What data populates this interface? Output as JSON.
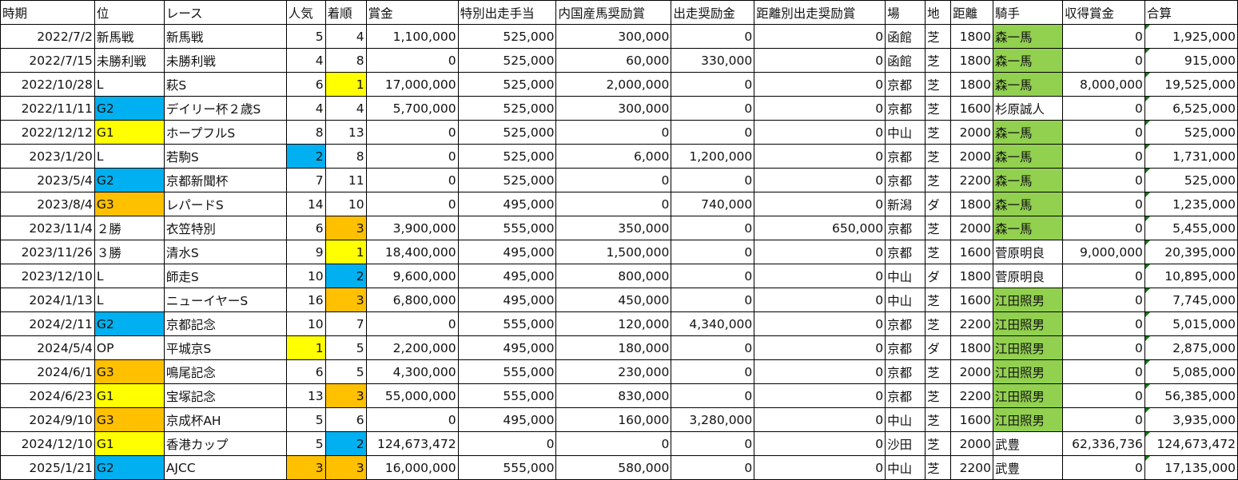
{
  "colors": {
    "yellow": "#FFFF00",
    "blue": "#00B0F0",
    "orange": "#FFC000",
    "green": "#92D050"
  },
  "headers": [
    "時期",
    "位",
    "レース",
    "人気",
    "着順",
    "賞金",
    "特別出走手当",
    "内国産馬奨励賞",
    "出走奨励金",
    "距離別出走奨励賞",
    "場",
    "地",
    "距離",
    "騎手",
    "収得賞金",
    "合算"
  ],
  "rows": [
    {
      "cells": [
        "2022/7/2",
        "新馬戦",
        "新馬戦",
        "5",
        "4",
        "1,100,000",
        "525,000",
        "300,000",
        "0",
        "0",
        "函館",
        "芝",
        "1800",
        "森一馬",
        "0",
        "1,925,000"
      ],
      "fills": {
        "13": "green"
      }
    },
    {
      "cells": [
        "2022/7/15",
        "未勝利戦",
        "未勝利戦",
        "4",
        "8",
        "0",
        "525,000",
        "60,000",
        "330,000",
        "0",
        "函館",
        "芝",
        "1800",
        "森一馬",
        "0",
        "915,000"
      ],
      "fills": {
        "13": "green"
      }
    },
    {
      "cells": [
        "2022/10/28",
        "L",
        "萩S",
        "6",
        "1",
        "17,000,000",
        "525,000",
        "2,000,000",
        "0",
        "0",
        "京都",
        "芝",
        "1800",
        "森一馬",
        "8,000,000",
        "19,525,000"
      ],
      "fills": {
        "4": "yellow",
        "13": "green"
      }
    },
    {
      "cells": [
        "2022/11/11",
        "G2",
        "デイリー杯２歳S",
        "4",
        "4",
        "5,700,000",
        "525,000",
        "300,000",
        "0",
        "0",
        "京都",
        "芝",
        "1600",
        "杉原誠人",
        "0",
        "6,525,000"
      ],
      "fills": {
        "1": "blue"
      }
    },
    {
      "cells": [
        "2022/12/12",
        "G1",
        "ホープフルS",
        "8",
        "13",
        "0",
        "525,000",
        "0",
        "0",
        "0",
        "中山",
        "芝",
        "2000",
        "森一馬",
        "0",
        "525,000"
      ],
      "fills": {
        "1": "yellow",
        "13": "green"
      }
    },
    {
      "cells": [
        "2023/1/20",
        "L",
        "若駒S",
        "2",
        "8",
        "0",
        "525,000",
        "6,000",
        "1,200,000",
        "0",
        "京都",
        "芝",
        "2000",
        "森一馬",
        "0",
        "1,731,000"
      ],
      "fills": {
        "3": "blue",
        "13": "green"
      }
    },
    {
      "cells": [
        "2023/5/4",
        "G2",
        "京都新聞杯",
        "7",
        "11",
        "0",
        "525,000",
        "0",
        "0",
        "0",
        "京都",
        "芝",
        "2200",
        "森一馬",
        "0",
        "525,000"
      ],
      "fills": {
        "1": "blue",
        "13": "green"
      }
    },
    {
      "cells": [
        "2023/8/4",
        "G3",
        "レパードS",
        "14",
        "10",
        "0",
        "495,000",
        "0",
        "740,000",
        "0",
        "新潟",
        "ダ",
        "1800",
        "森一馬",
        "0",
        "1,235,000"
      ],
      "fills": {
        "1": "orange",
        "13": "green"
      }
    },
    {
      "cells": [
        "2023/11/4",
        "２勝",
        "衣笠特別",
        "6",
        "3",
        "3,900,000",
        "555,000",
        "350,000",
        "0",
        "650,000",
        "京都",
        "芝",
        "2000",
        "森一馬",
        "0",
        "5,455,000"
      ],
      "fills": {
        "4": "orange",
        "13": "green"
      }
    },
    {
      "cells": [
        "2023/11/26",
        "３勝",
        "清水S",
        "9",
        "1",
        "18,400,000",
        "495,000",
        "1,500,000",
        "0",
        "0",
        "京都",
        "芝",
        "1600",
        "菅原明良",
        "9,000,000",
        "20,395,000"
      ],
      "fills": {
        "4": "yellow"
      }
    },
    {
      "cells": [
        "2023/12/10",
        "L",
        "師走S",
        "10",
        "2",
        "9,600,000",
        "495,000",
        "800,000",
        "0",
        "0",
        "中山",
        "ダ",
        "1800",
        "菅原明良",
        "0",
        "10,895,000"
      ],
      "fills": {
        "4": "blue"
      }
    },
    {
      "cells": [
        "2024/1/13",
        "L",
        "ニューイヤーS",
        "16",
        "3",
        "6,800,000",
        "495,000",
        "450,000",
        "0",
        "0",
        "中山",
        "芝",
        "1600",
        "江田照男",
        "0",
        "7,745,000"
      ],
      "fills": {
        "4": "orange",
        "13": "green"
      }
    },
    {
      "cells": [
        "2024/2/11",
        "G2",
        "京都記念",
        "10",
        "7",
        "0",
        "555,000",
        "120,000",
        "4,340,000",
        "0",
        "京都",
        "芝",
        "2200",
        "江田照男",
        "0",
        "5,015,000"
      ],
      "fills": {
        "1": "blue",
        "13": "green"
      }
    },
    {
      "cells": [
        "2024/5/4",
        "OP",
        "平城京S",
        "1",
        "5",
        "2,200,000",
        "495,000",
        "180,000",
        "0",
        "0",
        "京都",
        "ダ",
        "1800",
        "江田照男",
        "0",
        "2,875,000"
      ],
      "fills": {
        "3": "yellow",
        "13": "green"
      }
    },
    {
      "cells": [
        "2024/6/1",
        "G3",
        "鳴尾記念",
        "6",
        "5",
        "4,300,000",
        "555,000",
        "230,000",
        "0",
        "0",
        "京都",
        "芝",
        "2000",
        "江田照男",
        "0",
        "5,085,000"
      ],
      "fills": {
        "1": "orange",
        "13": "green"
      }
    },
    {
      "cells": [
        "2024/6/23",
        "G1",
        "宝塚記念",
        "13",
        "3",
        "55,000,000",
        "555,000",
        "830,000",
        "0",
        "0",
        "京都",
        "芝",
        "2200",
        "江田照男",
        "0",
        "56,385,000"
      ],
      "fills": {
        "1": "yellow",
        "4": "orange",
        "13": "green"
      }
    },
    {
      "cells": [
        "2024/9/10",
        "G3",
        "京成杯AH",
        "5",
        "6",
        "0",
        "495,000",
        "160,000",
        "3,280,000",
        "0",
        "中山",
        "芝",
        "1600",
        "江田照男",
        "0",
        "3,935,000"
      ],
      "fills": {
        "1": "orange",
        "13": "green"
      }
    },
    {
      "cells": [
        "2024/12/10",
        "G1",
        "香港カップ",
        "5",
        "2",
        "124,673,472",
        "0",
        "0",
        "0",
        "0",
        "沙田",
        "芝",
        "2000",
        "武豊",
        "62,336,736",
        "124,673,472"
      ],
      "fills": {
        "1": "yellow",
        "4": "blue"
      }
    },
    {
      "cells": [
        "2025/1/21",
        "G2",
        "AJCC",
        "3",
        "3",
        "16,000,000",
        "555,000",
        "580,000",
        "0",
        "0",
        "中山",
        "芝",
        "2200",
        "武豊",
        "0",
        "17,135,000"
      ],
      "fills": {
        "1": "blue",
        "3": "orange",
        "4": "orange"
      }
    }
  ]
}
